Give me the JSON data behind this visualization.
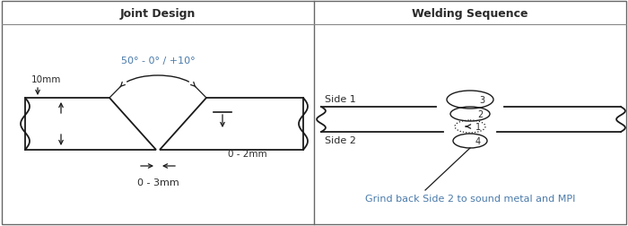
{
  "title_left": "Joint Design",
  "title_right": "Welding Sequence",
  "angle_label": "50° - 0° / +10°",
  "depth_label": "10mm",
  "gap_label": "0 - 3mm",
  "root_label": "0 - 2mm",
  "side1_label": "Side 1",
  "side2_label": "Side 2",
  "note_label": "Grind back Side 2 to sound metal and MPI",
  "line_color": "#1a1a1a",
  "text_color": "#2a2a2a",
  "annotation_color": "#4a7aaa",
  "bg_color": "#ffffff",
  "border_color": "#666666",
  "header_border": "#888888"
}
